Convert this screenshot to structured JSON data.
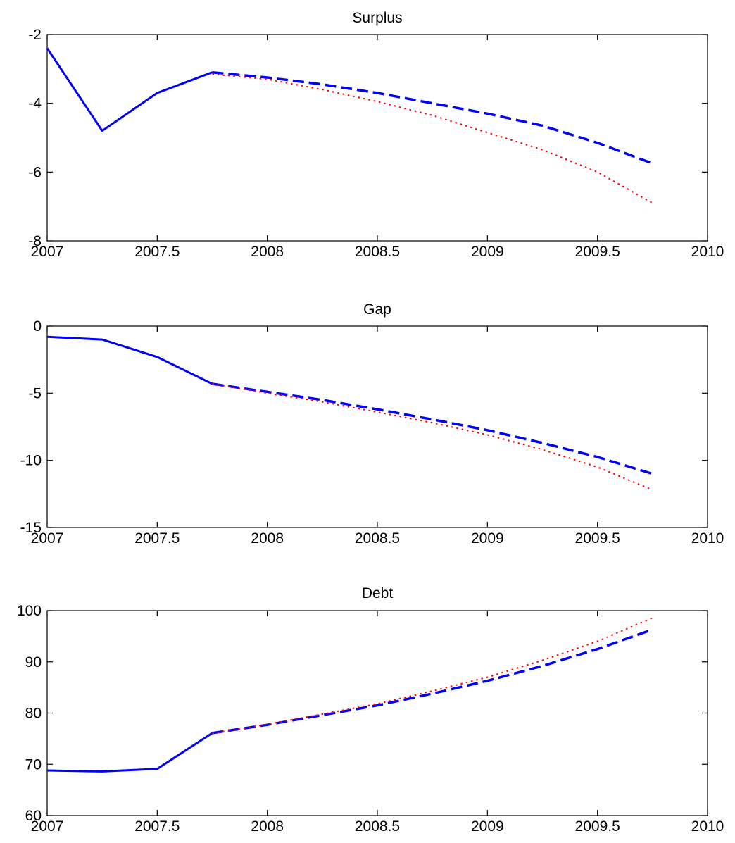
{
  "chart_data": [
    {
      "type": "line",
      "title": "Surplus",
      "xlabel": "",
      "ylabel": "",
      "xlim": [
        2007,
        2010
      ],
      "ylim": [
        -8,
        -2
      ],
      "xticks": [
        2007,
        2007.5,
        2008,
        2008.5,
        2009,
        2009.5,
        2010
      ],
      "xtick_labels": [
        "2007",
        "2007.5",
        "2008",
        "2008.5",
        "2009",
        "2009.5",
        "2010"
      ],
      "yticks": [
        -8,
        -6,
        -4,
        -2
      ],
      "ytick_labels": [
        "-8",
        "-6",
        "-4",
        "-2"
      ],
      "grid": false,
      "series": [
        {
          "style": "solid",
          "color": "#0000ff",
          "x": [
            2007,
            2007.25,
            2007.5,
            2007.75
          ],
          "y": [
            -2.4,
            -4.8,
            -3.7,
            -3.1
          ]
        },
        {
          "style": "dashed",
          "color": "#0000ff",
          "x": [
            2007.75,
            2008,
            2008.25,
            2008.5,
            2008.75,
            2009,
            2009.25,
            2009.5,
            2009.75
          ],
          "y": [
            -3.1,
            -3.25,
            -3.45,
            -3.7,
            -4.0,
            -4.3,
            -4.65,
            -5.15,
            -5.75
          ]
        },
        {
          "style": "dotted",
          "color": "#ff0000",
          "x": [
            2007.75,
            2008,
            2008.25,
            2008.5,
            2008.75,
            2009,
            2009.25,
            2009.5,
            2009.75
          ],
          "y": [
            -3.15,
            -3.3,
            -3.6,
            -3.95,
            -4.35,
            -4.85,
            -5.35,
            -6.0,
            -6.9
          ]
        }
      ]
    },
    {
      "type": "line",
      "title": "Gap",
      "xlabel": "",
      "ylabel": "",
      "xlim": [
        2007,
        2010
      ],
      "ylim": [
        -15,
        0
      ],
      "xticks": [
        2007,
        2007.5,
        2008,
        2008.5,
        2009,
        2009.5,
        2010
      ],
      "xtick_labels": [
        "2007",
        "2007.5",
        "2008",
        "2008.5",
        "2009",
        "2009.5",
        "2010"
      ],
      "yticks": [
        -15,
        -10,
        -5,
        0
      ],
      "ytick_labels": [
        "-15",
        "-10",
        "-5",
        "0"
      ],
      "grid": false,
      "series": [
        {
          "style": "solid",
          "color": "#0000ff",
          "x": [
            2007,
            2007.25,
            2007.5,
            2007.75
          ],
          "y": [
            -0.8,
            -1.0,
            -2.3,
            -4.3
          ]
        },
        {
          "style": "dashed",
          "color": "#0000ff",
          "x": [
            2007.75,
            2008,
            2008.25,
            2008.5,
            2008.75,
            2009,
            2009.25,
            2009.5,
            2009.75
          ],
          "y": [
            -4.3,
            -4.9,
            -5.5,
            -6.2,
            -6.95,
            -7.75,
            -8.7,
            -9.75,
            -11.0
          ]
        },
        {
          "style": "dotted",
          "color": "#ff0000",
          "x": [
            2007.75,
            2008,
            2008.25,
            2008.5,
            2008.75,
            2009,
            2009.25,
            2009.5,
            2009.75
          ],
          "y": [
            -4.3,
            -5.0,
            -5.65,
            -6.4,
            -7.2,
            -8.1,
            -9.2,
            -10.5,
            -12.2
          ]
        }
      ]
    },
    {
      "type": "line",
      "title": "Debt",
      "xlabel": "",
      "ylabel": "",
      "xlim": [
        2007,
        2010
      ],
      "ylim": [
        60,
        100
      ],
      "xticks": [
        2007,
        2007.5,
        2008,
        2008.5,
        2009,
        2009.5,
        2010
      ],
      "xtick_labels": [
        "2007",
        "2007.5",
        "2008",
        "2008.5",
        "2009",
        "2009.5",
        "2010"
      ],
      "yticks": [
        60,
        70,
        80,
        90,
        100
      ],
      "ytick_labels": [
        "60",
        "70",
        "80",
        "90",
        "100"
      ],
      "grid": false,
      "series": [
        {
          "style": "solid",
          "color": "#0000ff",
          "x": [
            2007,
            2007.25,
            2007.5,
            2007.75
          ],
          "y": [
            68.8,
            68.6,
            69.1,
            76.1
          ]
        },
        {
          "style": "dashed",
          "color": "#0000ff",
          "x": [
            2007.75,
            2008,
            2008.25,
            2008.5,
            2008.75,
            2009,
            2009.25,
            2009.5,
            2009.75
          ],
          "y": [
            76.1,
            77.7,
            79.6,
            81.5,
            83.8,
            86.3,
            89.2,
            92.5,
            96.3
          ]
        },
        {
          "style": "dotted",
          "color": "#ff0000",
          "x": [
            2007.75,
            2008,
            2008.25,
            2008.5,
            2008.75,
            2009,
            2009.25,
            2009.5,
            2009.75
          ],
          "y": [
            76.0,
            77.8,
            79.8,
            81.8,
            84.3,
            87.0,
            90.3,
            94.0,
            98.6
          ]
        }
      ]
    }
  ]
}
